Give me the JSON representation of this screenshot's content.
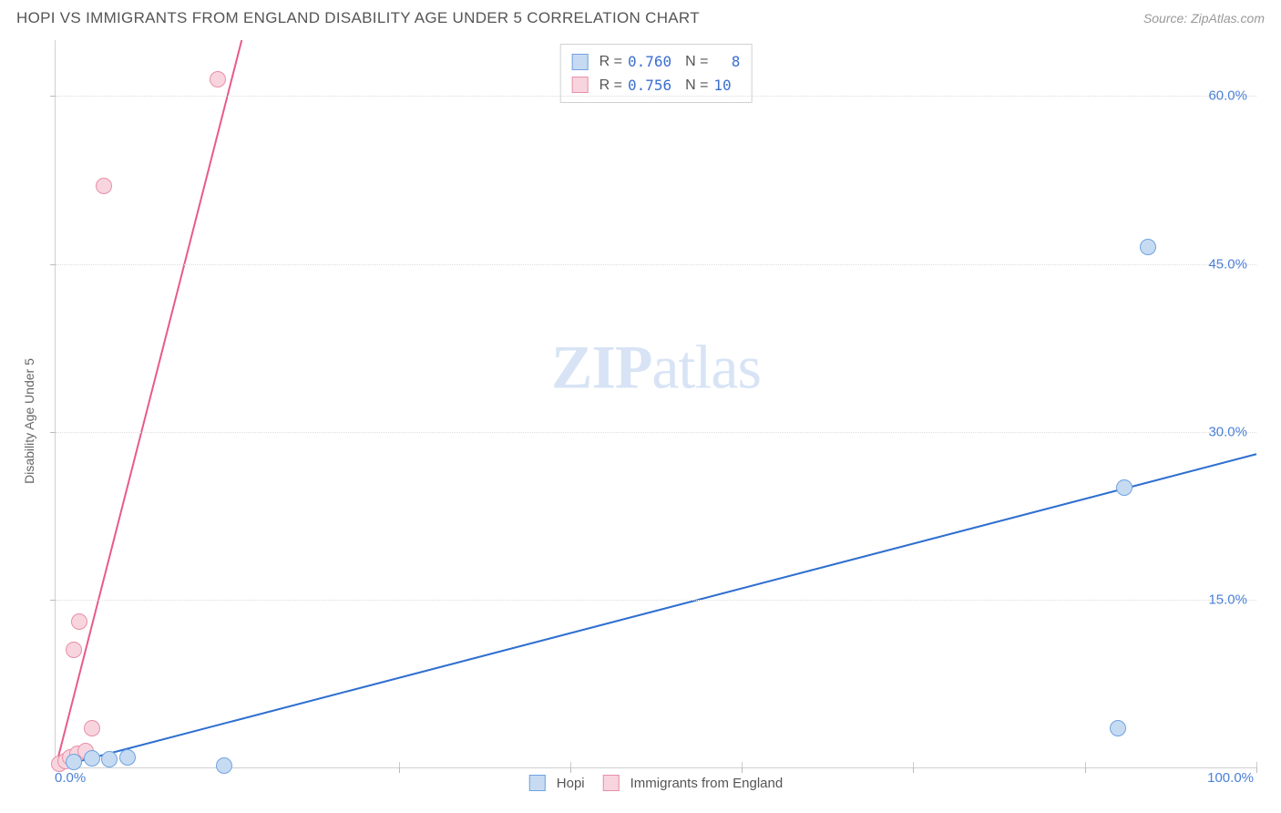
{
  "header": {
    "title": "HOPI VS IMMIGRANTS FROM ENGLAND DISABILITY AGE UNDER 5 CORRELATION CHART",
    "source": "Source: ZipAtlas.com"
  },
  "chart": {
    "type": "scatter",
    "ylabel": "Disability Age Under 5",
    "watermark_zip": "ZIP",
    "watermark_atlas": "atlas",
    "xlim": [
      0,
      100
    ],
    "ylim": [
      0,
      65
    ],
    "x_ticks": [
      0,
      14.3,
      28.6,
      42.9,
      57.1,
      71.4,
      85.7,
      100
    ],
    "x_tick_labels_shown": {
      "0": "0.0%",
      "100": "100.0%"
    },
    "y_grid": [
      15,
      30,
      45,
      60
    ],
    "y_tick_labels": {
      "15": "15.0%",
      "30": "30.0%",
      "45": "45.0%",
      "60": "60.0%"
    },
    "background_color": "#ffffff",
    "grid_color": "#dddddd",
    "axis_color": "#d0d0d0",
    "series": {
      "hopi": {
        "label": "Hopi",
        "color_fill": "#c6dbf2",
        "color_stroke": "#6fa3e0",
        "line_color": "#2f6fd0",
        "r_value": "0.760",
        "n_value": "8",
        "marker_radius": 8,
        "points": [
          {
            "x": 1.5,
            "y": 0.5
          },
          {
            "x": 3.0,
            "y": 0.8
          },
          {
            "x": 4.5,
            "y": 0.7
          },
          {
            "x": 6.0,
            "y": 0.9
          },
          {
            "x": 14.0,
            "y": 0.2
          },
          {
            "x": 88.5,
            "y": 3.5
          },
          {
            "x": 89.0,
            "y": 25.0
          },
          {
            "x": 91.0,
            "y": 46.5
          }
        ],
        "trend": {
          "x1": 0,
          "y1": 0,
          "x2": 100,
          "y2": 28.0
        }
      },
      "england": {
        "label": "Immigrants from England",
        "color_fill": "#f8d5de",
        "color_stroke": "#e78fa8",
        "line_color": "#e85a8a",
        "r_value": "0.756",
        "n_value": "10",
        "marker_radius": 8,
        "points": [
          {
            "x": 0.3,
            "y": 0.3
          },
          {
            "x": 0.8,
            "y": 0.6
          },
          {
            "x": 1.2,
            "y": 0.9
          },
          {
            "x": 1.8,
            "y": 1.2
          },
          {
            "x": 2.5,
            "y": 1.5
          },
          {
            "x": 3.0,
            "y": 3.5
          },
          {
            "x": 1.5,
            "y": 10.5
          },
          {
            "x": 2.0,
            "y": 13.0
          },
          {
            "x": 4.0,
            "y": 52.0
          },
          {
            "x": 13.5,
            "y": 61.5
          }
        ],
        "trend": {
          "x1": 0,
          "y1": 0,
          "x2": 15.5,
          "y2": 65.0
        }
      }
    }
  }
}
